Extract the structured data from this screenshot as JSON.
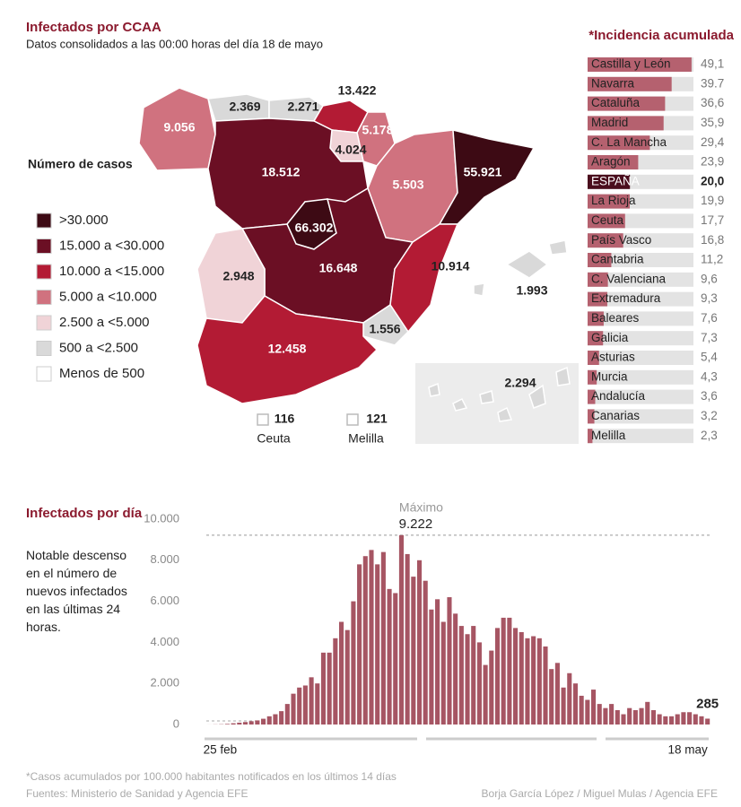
{
  "header": {
    "title": "Infectados por CCAA",
    "subtitle": "Datos consolidados a las 00:00 horas del día 18 de mayo"
  },
  "chart_data": [
    {
      "type": "map",
      "legend_title": "Número de casos",
      "legend": [
        {
          "label": ">30.000",
          "color": "#3d0a14"
        },
        {
          "label": "15.000 a <30.000",
          "color": "#6b0f24"
        },
        {
          "label": "10.000 a <15.000",
          "color": "#b31b34"
        },
        {
          "label": "5.000 a <10.000",
          "color": "#d0727f"
        },
        {
          "label": "2.500 a <5.000",
          "color": "#f0d3d7"
        },
        {
          "label": "500 a <2.500",
          "color": "#d9d9d9"
        },
        {
          "label": "Menos de 500",
          "color": "#ffffff"
        }
      ],
      "values": [
        9056,
        2369,
        2271,
        13422,
        5178,
        4024,
        18512,
        5503,
        55921,
        66302,
        16648,
        2948,
        10914,
        1993,
        1556,
        12458,
        2294,
        116,
        121
      ],
      "value_labels": [
        "9.056",
        "2.369",
        "2.271",
        "13.422",
        "5.178",
        "4.024",
        "18.512",
        "5.503",
        "55.921",
        "66.302",
        "16.648",
        "2.948",
        "10.914",
        "1.993",
        "1.556",
        "12.458",
        "2.294",
        "116",
        "121"
      ],
      "colors": [
        "#d0727f",
        "#d9d9d9",
        "#d9d9d9",
        "#b31b34",
        "#d0727f",
        "#f0d3d7",
        "#6b0f24",
        "#d0727f",
        "#3d0a14",
        "#3d0a14",
        "#6b0f24",
        "#f0d3d7",
        "#b31b34",
        "#d9d9d9",
        "#d9d9d9",
        "#b31b34",
        "#d9d9d9",
        "#ffffff",
        "#ffffff"
      ],
      "categories": [
        null,
        null,
        null,
        null,
        null,
        null,
        null,
        null,
        null,
        null,
        null,
        null,
        null,
        null,
        null,
        null,
        null,
        "Ceuta",
        "Melilla"
      ]
    },
    {
      "type": "hbar",
      "title": "*Incidencia acumulada",
      "categories": [
        "Castilla y León",
        "Navarra",
        "Cataluña",
        "Madrid",
        "C. La Mancha",
        "Aragón",
        "ESPAÑA",
        "La Rioja",
        "Ceuta",
        "País Vasco",
        "Cantabria",
        "C. Valenciana",
        "Extremadura",
        "Baleares",
        "Galicia",
        "Asturias",
        "Murcia",
        "Andalucía",
        "Canarias",
        "Melilla"
      ],
      "values": [
        49.1,
        39.7,
        36.6,
        35.9,
        29.4,
        23.9,
        20.0,
        19.9,
        17.7,
        16.8,
        11.2,
        9.6,
        9.3,
        7.6,
        7.3,
        5.4,
        4.3,
        3.6,
        3.2,
        2.3
      ],
      "value_labels": [
        "49,1",
        "39.7",
        "36,6",
        "35,9",
        "29,4",
        "23,9",
        "20,0",
        "19,9",
        "17,7",
        "16,8",
        "11,2",
        "9,6",
        "9,3",
        "7,6",
        "7,3",
        "5,4",
        "4,3",
        "3,6",
        "3,2",
        "2,3"
      ],
      "colors": [
        "#b5616f",
        "#b5616f",
        "#b5616f",
        "#b5616f",
        "#b5616f",
        "#b5616f",
        "#4a0e1d",
        "#b5616f",
        "#b5616f",
        "#b5616f",
        "#b5616f",
        "#b5616f",
        "#b5616f",
        "#b5616f",
        "#b5616f",
        "#b5616f",
        "#b5616f",
        "#b5616f",
        "#b5616f",
        "#b5616f"
      ],
      "track_color": "#e3e3e3",
      "xlim": [
        0,
        50
      ]
    },
    {
      "type": "bar",
      "title": "Infectados por día",
      "subtitle": "Notable descenso en el número de nuevos infectados en las últimas 24 horas.",
      "annotation": "Máximo",
      "color": "#a65563",
      "grid": false,
      "ylim": [
        0,
        10000
      ],
      "yticks": [
        0,
        {
          "value": 2000,
          "label": "2.000"
        },
        {
          "value": 4000,
          "label": "4.000"
        },
        {
          "value": 6000,
          "label": "6.000"
        },
        {
          "value": 8000,
          "label": "8.000"
        },
        {
          "value": 10000,
          "label": "10.000"
        }
      ],
      "categories": [
        "25 feb",
        null,
        null,
        null,
        null,
        null,
        null,
        null,
        null,
        null,
        null,
        null,
        null,
        null,
        null,
        null,
        null,
        null,
        null,
        null,
        null,
        null,
        null,
        null,
        null,
        null,
        null,
        null,
        null,
        null,
        null,
        null,
        null,
        null,
        null,
        null,
        null,
        null,
        null,
        null,
        null,
        null,
        null,
        null,
        null,
        null,
        null,
        null,
        null,
        null,
        null,
        null,
        null,
        null,
        null,
        null,
        null,
        null,
        null,
        null,
        null,
        null,
        null,
        null,
        null,
        null,
        null,
        null,
        null,
        null,
        null,
        null,
        null,
        null,
        null,
        null,
        null,
        null,
        null,
        null,
        null,
        null,
        null,
        "18 may"
      ],
      "values": [
        2,
        7,
        13,
        28,
        60,
        90,
        120,
        160,
        200,
        280,
        400,
        500,
        650,
        1000,
        1500,
        1800,
        1900,
        2300,
        2000,
        3500,
        3500,
        4200,
        5000,
        4600,
        6000,
        7800,
        8200,
        8500,
        7800,
        8400,
        6600,
        6400,
        9222,
        8300,
        7200,
        8000,
        7000,
        5600,
        6100,
        5000,
        6200,
        5400,
        4800,
        4400,
        4800,
        4000,
        2900,
        3600,
        4700,
        5200,
        5200,
        4700,
        4500,
        4200,
        4300,
        4200,
        3800,
        2700,
        3000,
        1800,
        2500,
        2000,
        1400,
        1200,
        1700,
        1000,
        800,
        1000,
        700,
        500,
        800,
        700,
        800,
        1100,
        700,
        500,
        400,
        400,
        500,
        600,
        600,
        500,
        400,
        285
      ],
      "value_labels": [
        null,
        null,
        null,
        null,
        null,
        null,
        null,
        null,
        null,
        null,
        null,
        null,
        null,
        null,
        null,
        null,
        null,
        null,
        null,
        null,
        null,
        null,
        null,
        null,
        null,
        null,
        null,
        null,
        null,
        null,
        null,
        null,
        "9.222",
        null,
        null,
        null,
        null,
        null,
        null,
        null,
        null,
        null,
        null,
        null,
        null,
        null,
        null,
        null,
        null,
        null,
        null,
        null,
        null,
        null,
        null,
        null,
        null,
        null,
        null,
        null,
        null,
        null,
        null,
        null,
        null,
        null,
        null,
        null,
        null,
        null,
        null,
        null,
        null,
        null,
        null,
        null,
        null,
        null,
        null,
        null,
        null,
        null,
        null,
        "285"
      ]
    }
  ],
  "footer": {
    "note": "*Casos acumulados por 100.000 habitantes notificados en los últimos 14 días",
    "sources": "Fuentes: Ministerio de Sanidad y Agencia EFE",
    "credit": "Borja García López / Miguel Mulas / Agencia EFE"
  }
}
